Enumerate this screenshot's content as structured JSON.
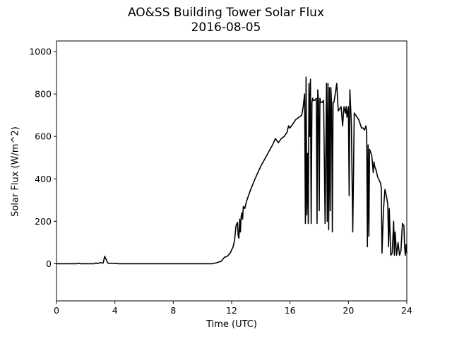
{
  "chart_data": {
    "type": "line",
    "title": "AO&SS Building Tower Solar Flux",
    "subtitle": "2016-08-05",
    "xlabel": "Time (UTC)",
    "ylabel": "Solar Flux (W/m^2)",
    "xlim": [
      0,
      24
    ],
    "ylim": [
      -175,
      1050
    ],
    "xticks": [
      0,
      4,
      8,
      12,
      16,
      20,
      24
    ],
    "yticks": [
      0,
      200,
      400,
      600,
      800,
      1000
    ],
    "grid": false,
    "line_color": "#000000",
    "series": [
      {
        "x": [
          0,
          1.4,
          1.5,
          1.6,
          2.6,
          2.7,
          2.8,
          3.0,
          3.2,
          3.3,
          3.4,
          3.5,
          3.6,
          3.8,
          4.0,
          4.1,
          4.2,
          4.4,
          6,
          8,
          10,
          10.7,
          11.0,
          11.3,
          11.5,
          11.7,
          11.9,
          12.1,
          12.2,
          12.3,
          12.4,
          12.45,
          12.5,
          12.55,
          12.6,
          12.65,
          12.7,
          12.75,
          12.8,
          12.9,
          13.0,
          13.1,
          13.2,
          13.3,
          13.6,
          14.0,
          14.4,
          14.8,
          15.0,
          15.2,
          15.4,
          15.6,
          15.8,
          15.9,
          16.0,
          16.2,
          16.4,
          16.6,
          16.8,
          16.9,
          17.0,
          17.05,
          17.1,
          17.15,
          17.2,
          17.25,
          17.3,
          17.35,
          17.4,
          17.45,
          17.5,
          17.55,
          17.6,
          17.7,
          17.8,
          17.85,
          17.9,
          17.95,
          18.0,
          18.05,
          18.1,
          18.2,
          18.3,
          18.4,
          18.5,
          18.55,
          18.6,
          18.65,
          18.7,
          18.75,
          18.8,
          18.85,
          18.9,
          18.95,
          19.0,
          19.1,
          19.2,
          19.3,
          19.4,
          19.5,
          19.6,
          19.7,
          19.8,
          19.85,
          19.9,
          20.0,
          20.05,
          20.1,
          20.2,
          20.3,
          20.4,
          20.5,
          20.6,
          20.7,
          20.8,
          20.9,
          21.0,
          21.1,
          21.2,
          21.25,
          21.3,
          21.35,
          21.4,
          21.45,
          21.5,
          21.55,
          21.6,
          21.7,
          21.75,
          21.8,
          21.9,
          22.0,
          22.1,
          22.2,
          22.25,
          22.3,
          22.4,
          22.5,
          22.6,
          22.65,
          22.7,
          22.75,
          22.8,
          22.9,
          23.0,
          23.1,
          23.15,
          23.2,
          23.3,
          23.4,
          23.5,
          23.6,
          23.7,
          23.8,
          23.85,
          23.9,
          23.95,
          24.0
        ],
        "y": [
          0,
          0,
          3,
          0,
          0,
          4,
          0,
          5,
          3,
          35,
          20,
          5,
          0,
          3,
          0,
          2,
          0,
          0,
          0,
          0,
          0,
          0,
          5,
          12,
          30,
          35,
          50,
          80,
          110,
          180,
          195,
          130,
          120,
          210,
          150,
          220,
          240,
          210,
          270,
          260,
          290,
          310,
          330,
          350,
          400,
          460,
          510,
          560,
          590,
          570,
          590,
          600,
          620,
          650,
          640,
          660,
          680,
          690,
          700,
          740,
          800,
          190,
          880,
          230,
          520,
          190,
          850,
          600,
          870,
          190,
          760,
          780,
          770,
          770,
          780,
          190,
          820,
          760,
          250,
          780,
          760,
          760,
          770,
          190,
          850,
          200,
          850,
          160,
          830,
          250,
          830,
          740,
          150,
          760,
          760,
          800,
          850,
          720,
          730,
          740,
          650,
          740,
          710,
          740,
          690,
          740,
          320,
          820,
          660,
          150,
          710,
          700,
          690,
          680,
          660,
          640,
          640,
          630,
          650,
          620,
          80,
          560,
          130,
          540,
          530,
          520,
          510,
          430,
          480,
          460,
          440,
          410,
          395,
          380,
          360,
          50,
          250,
          350,
          320,
          300,
          280,
          80,
          260,
          40,
          50,
          200,
          40,
          150,
          40,
          100,
          40,
          60,
          190,
          180,
          80,
          40,
          90,
          50
        ]
      }
    ]
  }
}
